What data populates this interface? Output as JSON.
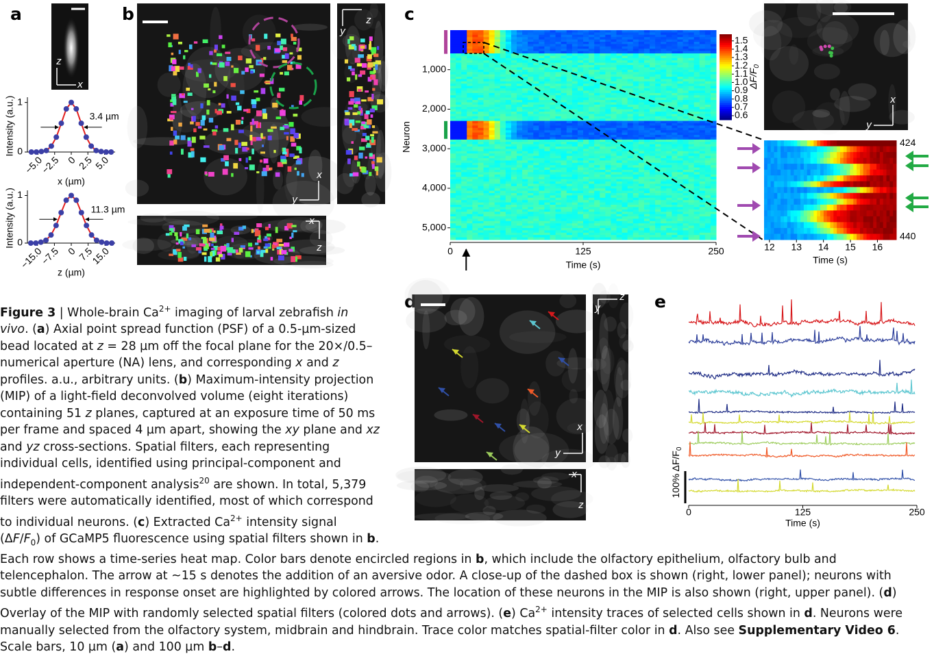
{
  "panel_labels": [
    "a",
    "b",
    "c",
    "d",
    "e"
  ],
  "panel_a": {
    "psf_axes": [
      "z",
      "x"
    ],
    "profiles": [
      {
        "type": "scatter",
        "y_label": "Intensity (a.u.)",
        "x_label": "x (µm)",
        "annotation": "3.4 µm",
        "x": [
          -6,
          -5.25,
          -4.5,
          -3.75,
          -3,
          -2.25,
          -1.5,
          -0.75,
          0,
          0.75,
          1.5,
          2.25,
          3,
          3.75,
          4.5,
          5.25,
          6
        ],
        "values": [
          0,
          0,
          0.01,
          0.03,
          0.12,
          0.3,
          0.58,
          0.87,
          1,
          0.87,
          0.58,
          0.3,
          0.12,
          0.03,
          0.01,
          0,
          0
        ],
        "xlim": [
          -6.6,
          6.6
        ],
        "ylim": [
          0,
          1.05
        ],
        "xticks": [
          {
            "value": -5,
            "label": "−5.0"
          },
          {
            "value": -2.5,
            "label": "−2.5"
          },
          0,
          2.5,
          {
            "value": 5,
            "label": "5.0"
          }
        ],
        "yticks": [
          0,
          1
        ],
        "point_color": "#3b3fa6",
        "line_color": "#e3201f"
      },
      {
        "type": "scatter",
        "y_label": "Intensity (a.u.)",
        "x_label": "z (µm)",
        "annotation": "11.3 µm",
        "x": [
          -18,
          -15.75,
          -13.5,
          -11.25,
          -9,
          -6.75,
          -4.5,
          -2.25,
          0,
          2.25,
          4.5,
          6.75,
          9,
          11.25,
          13.5,
          15.75,
          18
        ],
        "values": [
          0,
          0,
          0.02,
          0.06,
          0.17,
          0.37,
          0.64,
          0.9,
          1,
          0.9,
          0.64,
          0.37,
          0.17,
          0.06,
          0.02,
          0,
          0
        ],
        "xlim": [
          -19.5,
          19.5
        ],
        "ylim": [
          0,
          1.05
        ],
        "xticks": [
          {
            "value": -15,
            "label": "−15.0"
          },
          {
            "value": -7.5,
            "label": "−7.5"
          },
          0,
          7.5,
          {
            "value": 15,
            "label": "15.0"
          }
        ],
        "yticks": [
          0,
          1
        ],
        "point_color": "#3b3fa6",
        "line_color": "#e3201f"
      }
    ]
  },
  "panel_b": {
    "xy_axes": [
      "y",
      "x"
    ],
    "yz_axes": [
      "z",
      "y"
    ],
    "xz_axes": [
      "x",
      "z"
    ]
  },
  "panel_c": {
    "heatmap": {
      "type": "heatmap",
      "y_label": "Neuron",
      "x_label": "Time (s)",
      "xlim": [
        0,
        250
      ],
      "xticks": [
        0,
        125,
        250
      ],
      "ylim": [
        0,
        5300
      ],
      "yticks": [
        {
          "value": 1000,
          "label": "1,000"
        },
        {
          "value": 2000,
          "label": "2,000"
        },
        {
          "value": 3000,
          "label": "3,000"
        },
        {
          "value": 4000,
          "label": "4,000"
        },
        {
          "value": 5000,
          "label": "5,000"
        }
      ],
      "stimulus_time": 15,
      "region_bars": [
        {
          "color": "#b0449b",
          "range": [
            0,
            600
          ]
        },
        {
          "color": "#1aa24a",
          "range": [
            2300,
            2750
          ]
        }
      ],
      "colorbar": {
        "label": "ΔF/F",
        "label_sub": "0",
        "lim": [
          0.55,
          1.58
        ],
        "ticks": [
          1.5,
          1.4,
          1.3,
          1.2,
          1.1,
          {
            "value": 1,
            "label": "1.0"
          },
          0.9,
          0.8,
          0.7,
          0.6
        ]
      }
    },
    "closeup_axes": [
      "y",
      "x"
    ],
    "zoom": {
      "x_label": "Time (s)",
      "xlim": [
        11.8,
        16.7
      ],
      "xticks": [
        12,
        13,
        14,
        15,
        16
      ],
      "ylim": [
        423.5,
        440.5
      ],
      "yticks": [
        424,
        440
      ]
    }
  },
  "panel_d": {
    "xy_axes": [
      "y",
      "x"
    ],
    "yz_axes": [
      "z",
      "y"
    ],
    "xz_axes": [
      "x",
      "z"
    ]
  },
  "panel_e": {
    "type": "line",
    "x_label": "Time (s)",
    "xlim": [
      0,
      250
    ],
    "xticks": [
      0,
      125,
      250
    ],
    "scale_label": "100% ΔF/F",
    "scale_label_sub": "0",
    "trace_colors": [
      "#d7191c",
      "#2c3e9a",
      "#1f2d86",
      "#5cc6d0",
      "#1f2d86",
      "#d4d930",
      "#a0162a",
      "#9ccc5c",
      "#f05a28",
      "#3050a8",
      "#d4d930"
    ]
  },
  "caption": {
    "segments": [
      {
        "text": "Figure 3",
        "style": "b"
      },
      {
        "text": " | Whole-brain Ca"
      },
      {
        "text": "2+",
        "style": "sup"
      },
      {
        "text": " imaging of larval zebrafish "
      },
      {
        "text": "in vivo",
        "style": "i"
      },
      {
        "text": ". ("
      },
      {
        "text": "a",
        "style": "b"
      },
      {
        "text": ") Axial point spread function (PSF) of a 0.5-µm-sized bead located at "
      },
      {
        "text": "z",
        "style": "i"
      },
      {
        "text": " = 28 µm off the focal plane for the 20×/0.5–numerical aperture (NA) lens, and corresponding "
      },
      {
        "text": "x",
        "style": "i"
      },
      {
        "text": " and "
      },
      {
        "text": "z",
        "style": "i"
      },
      {
        "text": " profiles. a.u., arbitrary units. ("
      },
      {
        "text": "b",
        "style": "b"
      },
      {
        "text": ") Maximum-intensity projection (MIP) of a light-field deconvolved volume (eight iterations) containing 51 "
      },
      {
        "text": "z",
        "style": "i"
      },
      {
        "text": " planes, captured at an exposure time of 50 ms per frame and spaced 4 µm apart, showing the "
      },
      {
        "text": "xy",
        "style": "i"
      },
      {
        "text": " plane and "
      },
      {
        "text": "xz",
        "style": "i"
      },
      {
        "text": " and "
      },
      {
        "text": "yz",
        "style": "i"
      },
      {
        "text": " cross-sections. Spatial filters, each representing individual cells, identified using principal-component and independent-component analysis"
      },
      {
        "text": "20",
        "style": "sup"
      },
      {
        "text": " are shown. In total, 5,379 filters were automatically identified, most of which correspond to individual neurons. ("
      },
      {
        "text": "c",
        "style": "b"
      },
      {
        "text": ") Extracted Ca"
      },
      {
        "text": "2+",
        "style": "sup"
      },
      {
        "text": " intensity signal (Δ"
      },
      {
        "text": "F",
        "style": "i"
      },
      {
        "text": "/"
      },
      {
        "text": "F",
        "style": "i"
      },
      {
        "text": "0",
        "style": "sub"
      },
      {
        "text": ") of GCaMP5 fluorescence using spatial filters shown in "
      },
      {
        "text": "b",
        "style": "b"
      },
      {
        "text": ". Each row shows a time-series heat map. Color bars denote encircled regions in "
      },
      {
        "text": "b",
        "style": "b"
      },
      {
        "text": ", which include the olfactory epithelium, olfactory bulb and telencephalon. The arrow at ~15 s denotes the addition of an aversive odor. A close-up of the dashed box is shown (right, lower panel); neurons with subtle differences in response onset are highlighted by colored arrows. The location of these neurons in the MIP is also shown (right, upper panel). ("
      },
      {
        "text": "d",
        "style": "b"
      },
      {
        "text": ") Overlay of the MIP with randomly selected spatial filters (colored dots and arrows). ("
      },
      {
        "text": "e",
        "style": "b"
      },
      {
        "text": ") Ca"
      },
      {
        "text": "2+",
        "style": "sup"
      },
      {
        "text": " intensity traces of selected cells shown in "
      },
      {
        "text": "d",
        "style": "b"
      },
      {
        "text": ". Neurons were manually selected from the olfactory system, midbrain and hindbrain. Trace color matches spatial-filter color in "
      },
      {
        "text": "d",
        "style": "b"
      },
      {
        "text": ". Also see "
      },
      {
        "text": "Supplementary Video 6",
        "style": "b"
      },
      {
        "text": ". Scale bars, 10 µm ("
      },
      {
        "text": "a",
        "style": "b"
      },
      {
        "text": ") and 100 µm "
      },
      {
        "text": "b",
        "style": "b"
      },
      {
        "text": "–"
      },
      {
        "text": "d",
        "style": "b"
      },
      {
        "text": "."
      }
    ]
  }
}
